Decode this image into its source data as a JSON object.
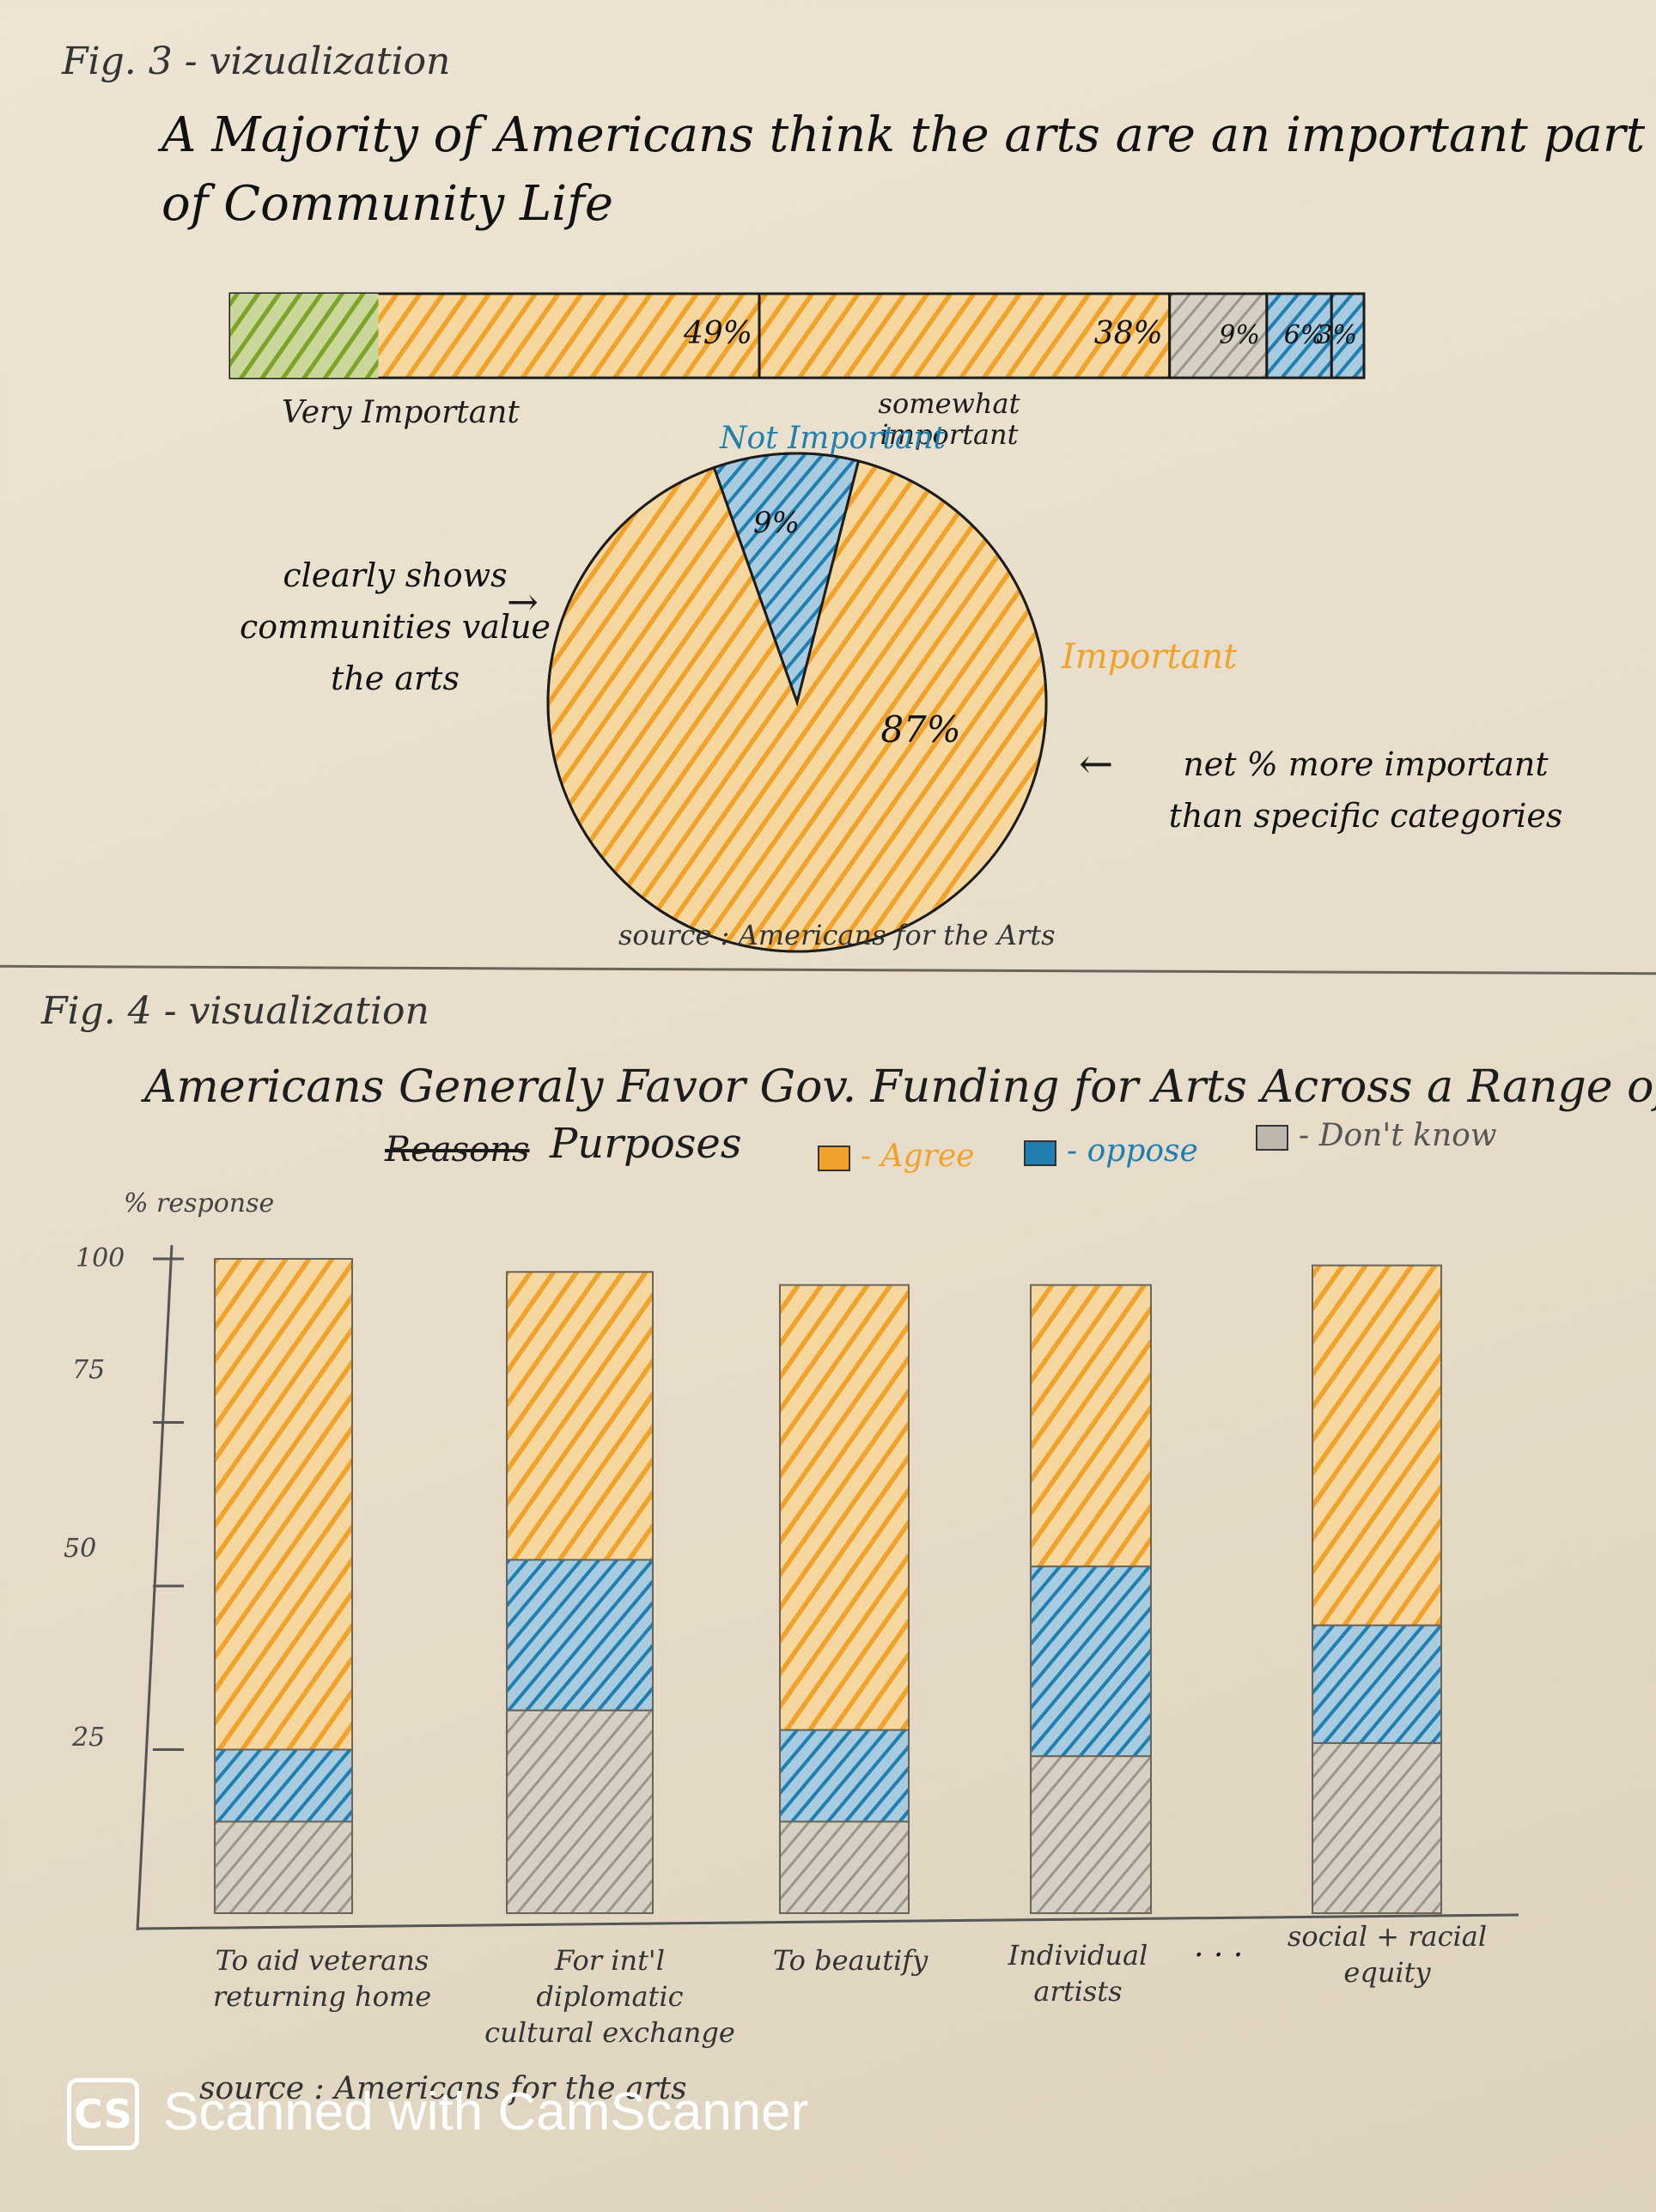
{
  "fig3": {
    "label": "Fig. 3 - vizualization",
    "title": "A Majority of Americans think the arts are an important part of Community Life",
    "source": "source : Americans for the Arts",
    "bar_labels": {
      "very_important": "Very Important",
      "somewhat_important": "somewhat important",
      "not_important": "Not Important",
      "important": "Important"
    },
    "note_left": "clearly shows communities value the arts",
    "note_right": "net % more important than specific categories"
  },
  "fig4": {
    "label": "Fig. 4 - visualization",
    "title": "Americans Generaly Favor Gov. Funding for Arts Across a Range of",
    "title_strike": "Reasons",
    "title_end": "Purposes",
    "source": "source : Americans for the arts",
    "legend": {
      "agree": "- Agree",
      "oppose": "- oppose",
      "dont_know": "- Don't know"
    },
    "ellipsis": ". . ."
  },
  "colors": {
    "orange": "#f0a22a",
    "green": "#7ba428",
    "blue": "#1f7fb0",
    "gray": "#9a958c",
    "ink": "#1c1c1c"
  },
  "chart_data": [
    {
      "type": "bar",
      "orientation": "horizontal-stacked",
      "title": "A Majority of Americans think the arts are an important part of Community Life",
      "segments": [
        {
          "name": "Very Important",
          "value": 49,
          "label": "49%"
        },
        {
          "name": "somewhat important",
          "value": 38,
          "label": "38%"
        },
        {
          "name": "",
          "value": 9,
          "label": "9%"
        },
        {
          "name": "",
          "value": 6,
          "label": "6%"
        },
        {
          "name": "",
          "value": 3,
          "label": "3%"
        }
      ]
    },
    {
      "type": "pie",
      "slices": [
        {
          "name": "Important",
          "value": 87,
          "label": "87%"
        },
        {
          "name": "Not Important",
          "value": 9,
          "label": "9%"
        }
      ]
    },
    {
      "type": "bar",
      "stacked": true,
      "title": "Americans Generaly Favor Gov. Funding for Arts Across a Range of Purposes",
      "ylabel": "% response",
      "yticks": [
        100,
        75,
        50,
        25
      ],
      "ylim": [
        0,
        100
      ],
      "categories": [
        "To aid veterans returning home",
        "For int'l diplomatic cultural exchange",
        "To beautify",
        "Individual artists",
        "social + racial equity"
      ],
      "series": [
        {
          "name": "Don't know",
          "values": [
            14,
            31,
            14,
            24,
            26
          ]
        },
        {
          "name": "oppose",
          "values": [
            11,
            23,
            14,
            29,
            18
          ]
        },
        {
          "name": "Agree",
          "values": [
            75,
            44,
            68,
            43,
            55
          ]
        }
      ]
    }
  ]
}
